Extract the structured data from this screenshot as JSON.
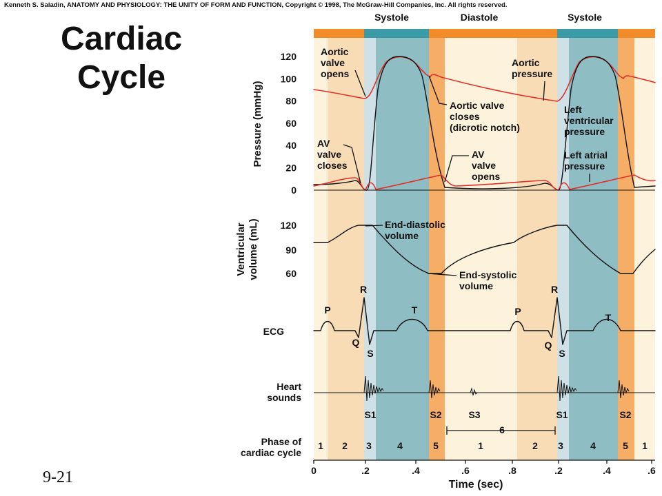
{
  "header": {
    "copyright": "Kenneth S. Saladin, ANATOMY AND PHYSIOLOGY: THE UNITY OF FORM AND FUNCTION, Copyright © 1998, The McGraw-Hill Companies, Inc.  All rights reserved."
  },
  "title": [
    "Cardiac",
    "Cycle"
  ],
  "slide_number": "9-21",
  "phase_bar": [
    "Systole",
    "Diastole",
    "Systole"
  ],
  "row_labels": {
    "pressure": "Pressure (mmHg)",
    "volume": [
      "Ventricular",
      "volume (mL)"
    ],
    "ecg": "ECG",
    "heart_sounds": [
      "Heart",
      "sounds"
    ],
    "phase": [
      "Phase of",
      "cardiac cycle"
    ]
  },
  "pressure_ticks": [
    120,
    100,
    80,
    60,
    40,
    20,
    0
  ],
  "volume_ticks": [
    120,
    90,
    60
  ],
  "time_ticks": [
    "0",
    ".2",
    ".4",
    ".6",
    ".8",
    ".2",
    ".4",
    ".6"
  ],
  "time_label": "Time (sec)",
  "annotations": [
    {
      "lines": [
        "Aortic",
        "valve",
        "opens"
      ]
    },
    {
      "lines": [
        "Aortic",
        "pressure"
      ]
    },
    {
      "lines": [
        "Aortic valve",
        "closes",
        "(dicrotic notch)"
      ]
    },
    {
      "lines": [
        "Left",
        "ventricular",
        "pressure"
      ]
    },
    {
      "lines": [
        "Left atrial",
        "pressure"
      ]
    },
    {
      "lines": [
        "AV",
        "valve",
        "closes"
      ]
    },
    {
      "lines": [
        "AV",
        "valve",
        "opens"
      ]
    },
    {
      "lines": [
        "End-diastolic",
        "volume"
      ]
    },
    {
      "lines": [
        "End-systolic",
        "volume"
      ]
    }
  ],
  "ecg_waves": [
    "P",
    "Q",
    "R",
    "S",
    "T",
    "P",
    "R",
    "Q",
    "S",
    "T"
  ],
  "heart_sounds": [
    "S1",
    "S2",
    "S3",
    "S1",
    "S2"
  ],
  "phases": [
    "1",
    "2",
    "3",
    "4",
    "5",
    "1",
    "2",
    "3",
    "4",
    "5",
    "1"
  ],
  "phase_6": "6"
}
